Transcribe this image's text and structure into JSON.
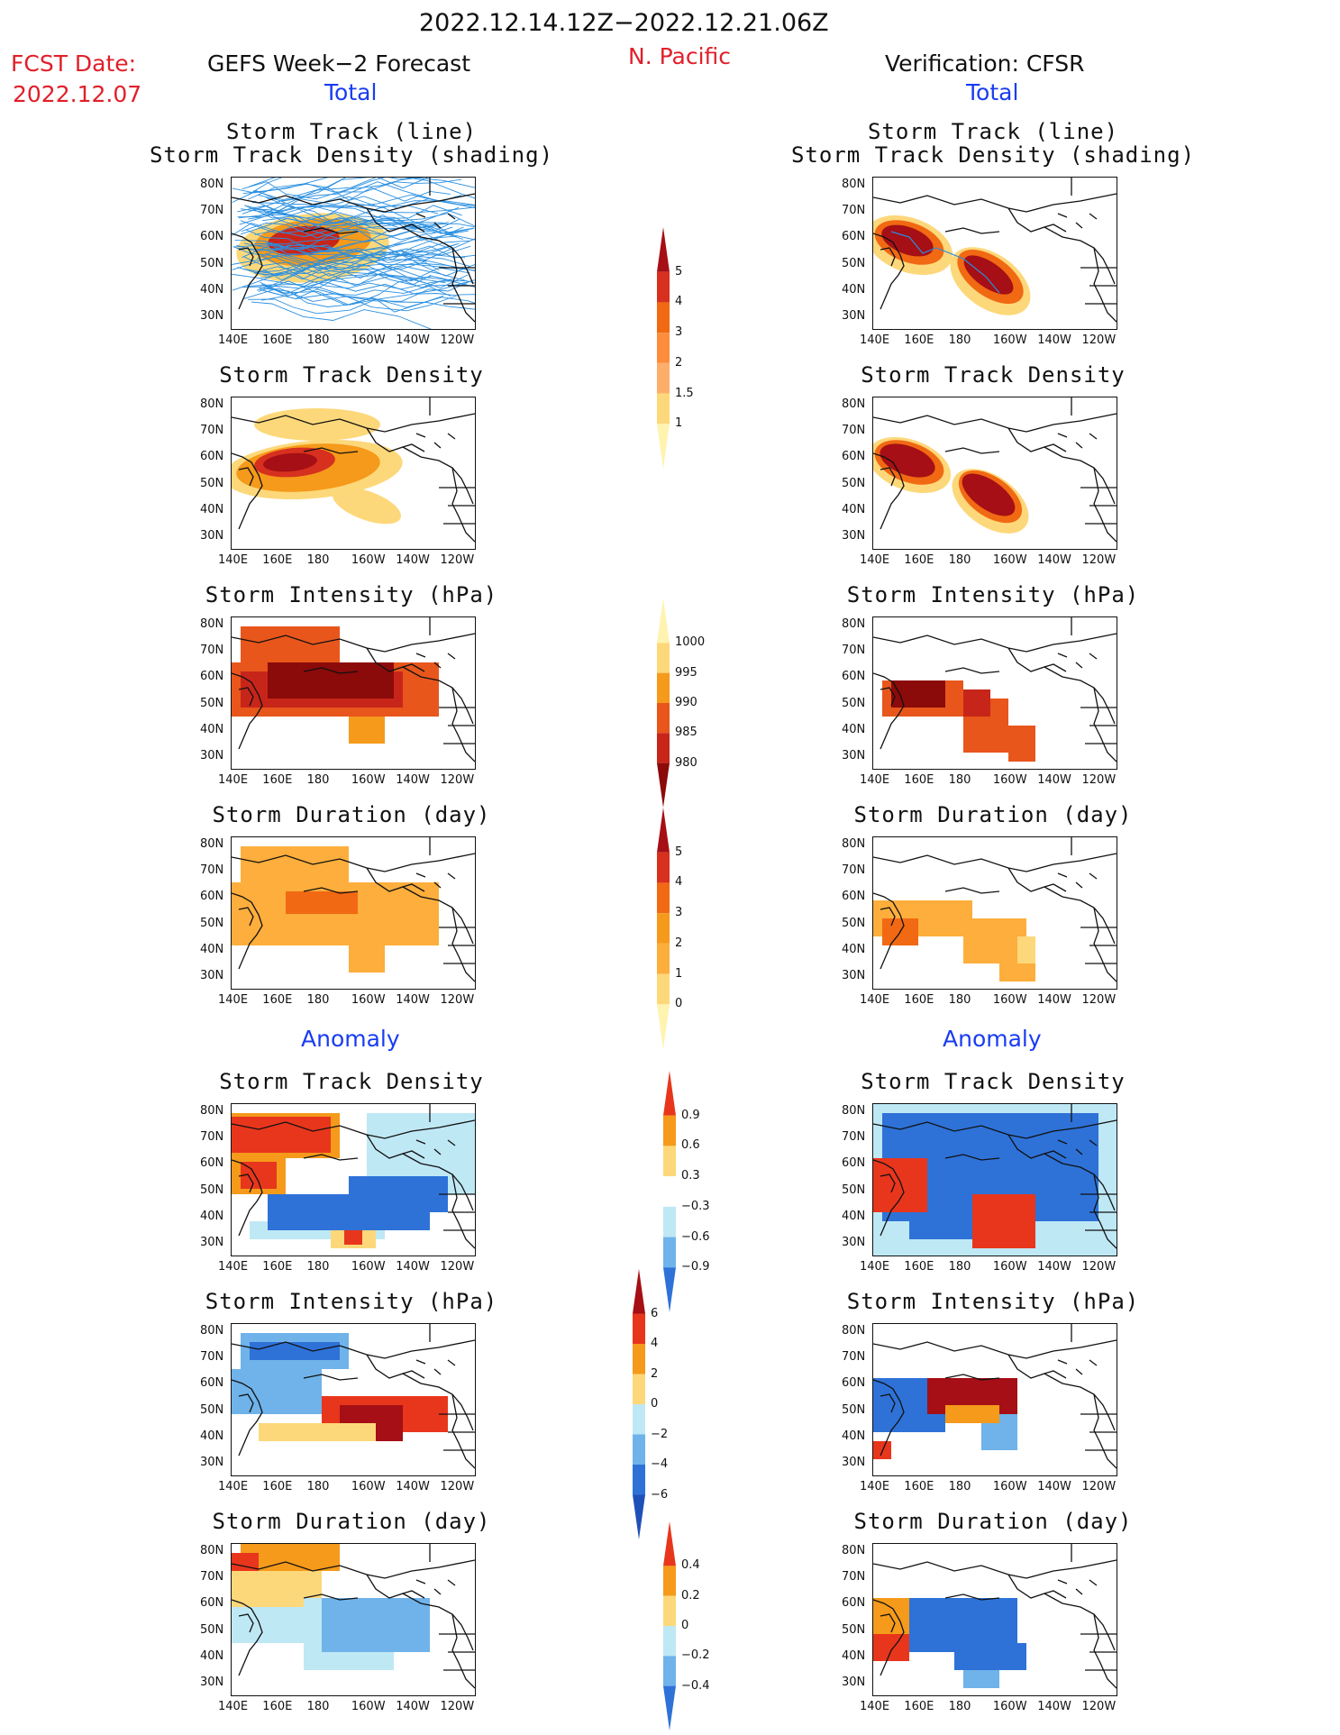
{
  "header": {
    "period": "2022.12.14.12Z−2022.12.21.06Z",
    "region": "N. Pacific",
    "fcst_label": "FCST Date:",
    "fcst_date": "2022.12.07",
    "left_title": "GEFS Week−2 Forecast",
    "right_title": "Verification: CFSR",
    "left_total": "Total",
    "right_total": "Total",
    "left_anomaly": "Anomaly",
    "right_anomaly": "Anomaly"
  },
  "panel_titles": {
    "track_line": "Storm Track (line)",
    "track_density_shading": "Storm Track Density (shading)",
    "density": "Storm Track Density",
    "intensity": "Storm Intensity (hPa)",
    "duration": "Storm Duration (day)"
  },
  "axes": {
    "lat_labels": [
      "80N",
      "70N",
      "60N",
      "50N",
      "40N",
      "30N"
    ],
    "lon_labels": [
      "140E",
      "160E",
      "180",
      "160W",
      "140W",
      "120W"
    ]
  },
  "colorbars": {
    "density": {
      "labels": [
        "5",
        "4",
        "3",
        "2",
        "1.5",
        "1"
      ],
      "colors": [
        "#a50f15",
        "#d7301f",
        "#f16913",
        "#fd8d3c",
        "#fdae6b",
        "#fdd87a",
        "#fff3b0"
      ]
    },
    "intensity": {
      "labels": [
        "1000",
        "995",
        "990",
        "985",
        "980"
      ],
      "colors": [
        "#fff3b0",
        "#fdd87a",
        "#f59a1a",
        "#e8561c",
        "#c8251a",
        "#8b0a0a"
      ]
    },
    "duration": {
      "labels": [
        "5",
        "4",
        "3",
        "2",
        "1",
        "0"
      ],
      "colors": [
        "#a50f15",
        "#d7301f",
        "#f16913",
        "#f59a1a",
        "#fdae3c",
        "#fdd87a",
        "#fff3b0"
      ]
    },
    "anom_density": {
      "labels": [
        "0.9",
        "0.6",
        "0.3",
        "−0.3",
        "−0.6",
        "−0.9"
      ],
      "colors": [
        "#e8361c",
        "#f59a1a",
        "#fdd87a",
        "#ffffff",
        "#bfe8f5",
        "#6fb3ea",
        "#2e72d8"
      ]
    },
    "anom_intensity": {
      "labels": [
        "6",
        "4",
        "2",
        "0",
        "−2",
        "−4",
        "−6"
      ],
      "colors": [
        "#a50f15",
        "#e8361c",
        "#f59a1a",
        "#fdd87a",
        "#bfe8f5",
        "#6fb3ea",
        "#2e72d8",
        "#1f50b8"
      ]
    },
    "anom_duration": {
      "labels": [
        "0.4",
        "0.2",
        "0",
        "−0.2",
        "−0.4"
      ],
      "colors": [
        "#e8361c",
        "#f59a1a",
        "#fdd87a",
        "#bfe8f5",
        "#6fb3ea",
        "#2e72d8"
      ]
    }
  }
}
